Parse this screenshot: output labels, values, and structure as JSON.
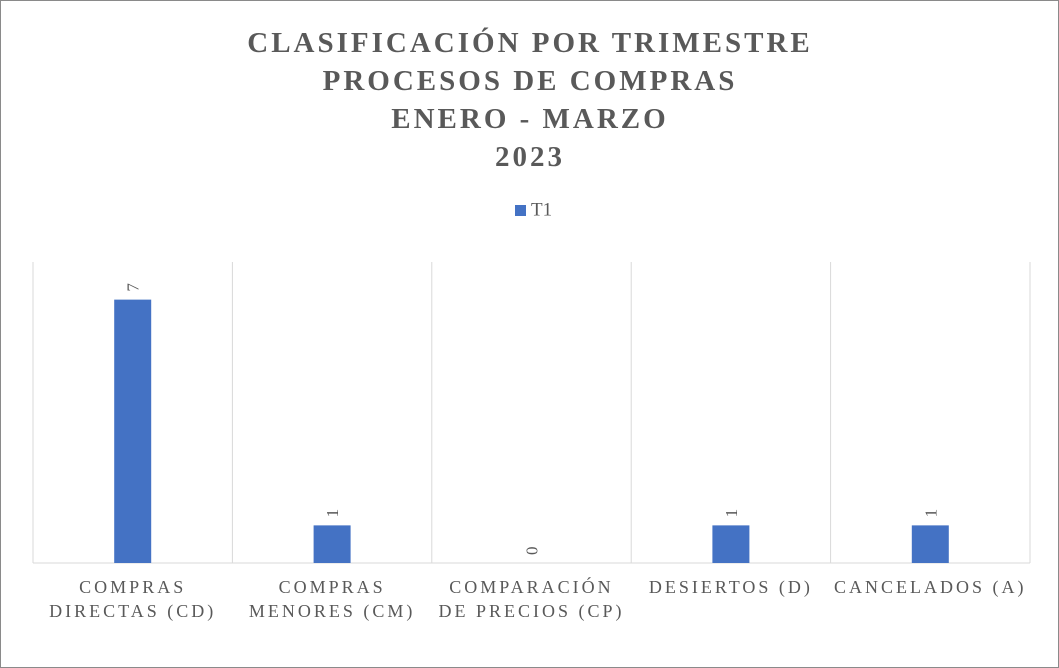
{
  "chart_data": {
    "type": "bar",
    "title": [
      "CLASIFICACIÓN POR TRIMESTRE",
      "PROCESOS DE COMPRAS",
      "ENERO - MARZO",
      "2023"
    ],
    "categories": [
      "COMPRAS DIRECTAS (CD)",
      "COMPRAS MENORES (CM)",
      "COMPARACIÓN DE PRECIOS (CP)",
      "DESIERTOS (D)",
      "CANCELADOS (A)"
    ],
    "series": [
      {
        "name": "T1",
        "color": "#4472c4",
        "values": [
          7,
          1,
          0,
          1,
          1
        ]
      }
    ],
    "ylim": [
      0,
      8
    ]
  }
}
